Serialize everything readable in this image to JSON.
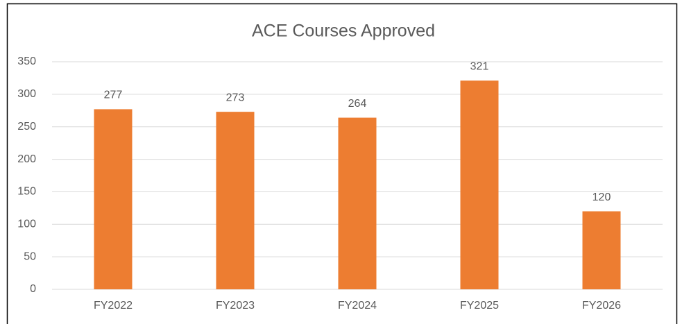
{
  "chart_data": {
    "type": "bar",
    "title": "ACE Courses Approved",
    "categories": [
      "FY2022",
      "FY2023",
      "FY2024",
      "FY2025",
      "FY2026"
    ],
    "values": [
      277,
      273,
      264,
      321,
      120
    ],
    "color": "#ed7d31",
    "ylim": [
      0,
      350
    ],
    "yticks": [
      0,
      50,
      100,
      150,
      200,
      250,
      300,
      350
    ],
    "grid": true
  }
}
